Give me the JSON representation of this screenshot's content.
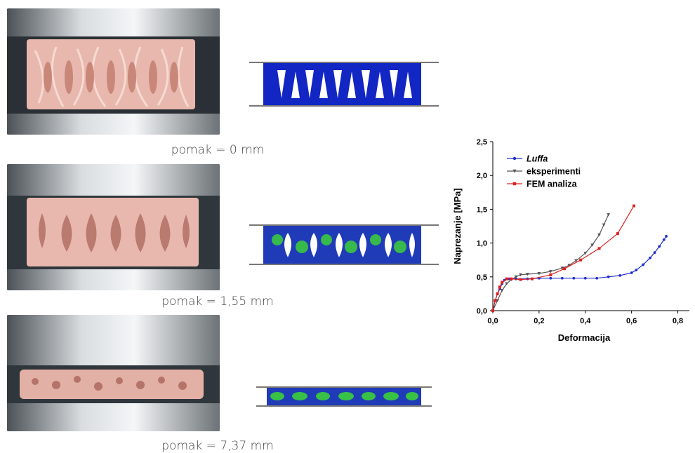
{
  "captions": [
    "pomak = 0 mm",
    "pomak = 1,55 mm",
    "pomak = 7,37 mm"
  ],
  "colors": {
    "luffa": "#1f2fd0",
    "eksperimenti": "#555555",
    "fem": "#e02020",
    "specimen": "#e8b8ae",
    "fem_blue": "#1226c4",
    "fem_green": "#3ccf3a"
  },
  "chart_data": {
    "type": "line",
    "title": "",
    "xlabel": "Deformacija",
    "ylabel": "Naprezanje [MPa]",
    "xlim": [
      0,
      0.85
    ],
    "ylim": [
      0,
      2.5
    ],
    "xticks": [
      "0,0",
      "0,2",
      "0,4",
      "0,6",
      "0,8"
    ],
    "yticks": [
      "0,0",
      "0,5",
      "1,0",
      "1,5",
      "2,0",
      "2,5"
    ],
    "legend_position": "top-left",
    "grid": false,
    "series": [
      {
        "name": "Luffa",
        "x": [
          0.0,
          0.01,
          0.02,
          0.03,
          0.04,
          0.05,
          0.06,
          0.07,
          0.1,
          0.15,
          0.2,
          0.25,
          0.3,
          0.35,
          0.4,
          0.45,
          0.5,
          0.55,
          0.6,
          0.62,
          0.65,
          0.68,
          0.7,
          0.72,
          0.74,
          0.75
        ],
        "y": [
          0.0,
          0.15,
          0.25,
          0.32,
          0.4,
          0.45,
          0.47,
          0.47,
          0.47,
          0.47,
          0.48,
          0.48,
          0.48,
          0.48,
          0.48,
          0.48,
          0.5,
          0.52,
          0.56,
          0.6,
          0.68,
          0.78,
          0.86,
          0.95,
          1.05,
          1.1
        ]
      },
      {
        "name": "eksperimenti",
        "x": [
          0.0,
          0.02,
          0.04,
          0.06,
          0.08,
          0.1,
          0.12,
          0.15,
          0.2,
          0.25,
          0.3,
          0.33,
          0.36,
          0.4,
          0.43,
          0.46,
          0.48,
          0.5
        ],
        "y": [
          0.0,
          0.15,
          0.3,
          0.4,
          0.46,
          0.5,
          0.53,
          0.54,
          0.55,
          0.58,
          0.63,
          0.67,
          0.74,
          0.85,
          0.97,
          1.12,
          1.27,
          1.42
        ]
      },
      {
        "name": "FEM analiza",
        "x": [
          0.0,
          0.01,
          0.02,
          0.03,
          0.04,
          0.06,
          0.08,
          0.12,
          0.17,
          0.25,
          0.31,
          0.38,
          0.46,
          0.54,
          0.61
        ],
        "y": [
          0.0,
          0.15,
          0.25,
          0.35,
          0.42,
          0.47,
          0.47,
          0.46,
          0.47,
          0.53,
          0.62,
          0.75,
          0.92,
          1.14,
          1.55
        ]
      }
    ]
  }
}
